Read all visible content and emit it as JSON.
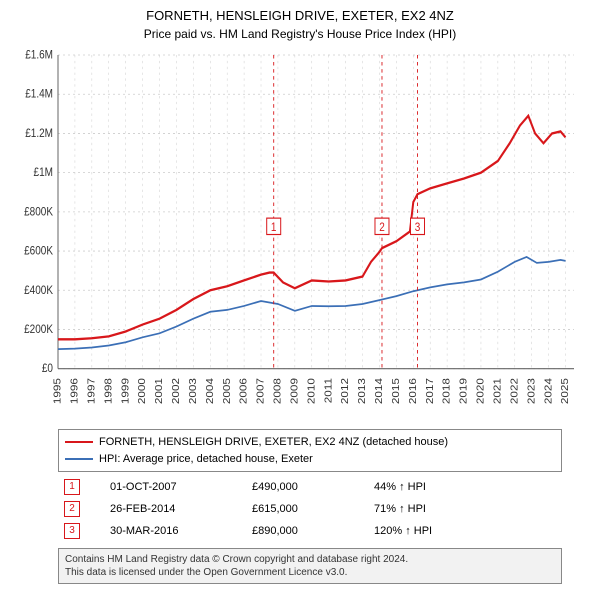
{
  "title": "FORNETH, HENSLEIGH DRIVE, EXETER, EX2 4NZ",
  "subtitle": "Price paid vs. HM Land Registry's House Price Index (HPI)",
  "chart": {
    "background_color": "#ffffff",
    "grid_color": "#cccccc",
    "axis_color": "#666666",
    "text_color": "#333333",
    "tick_fontsize": 10,
    "label_fontsize": 11,
    "x_years": [
      1995,
      1996,
      1997,
      1998,
      1999,
      2000,
      2001,
      2002,
      2003,
      2004,
      2005,
      2006,
      2007,
      2008,
      2009,
      2010,
      2011,
      2012,
      2013,
      2014,
      2015,
      2016,
      2017,
      2018,
      2019,
      2020,
      2021,
      2022,
      2023,
      2024,
      2025
    ],
    "xlim": [
      1995,
      2025.5
    ],
    "ylim": [
      0,
      1600000
    ],
    "ytick_step": 200000,
    "yticks": [
      "£0",
      "£200K",
      "£400K",
      "£600K",
      "£800K",
      "£1M",
      "£1.2M",
      "£1.4M",
      "£1.6M"
    ],
    "series": [
      {
        "name": "FORNETH, HENSLEIGH DRIVE, EXETER, EX2 4NZ (detached house)",
        "color": "#d8171b",
        "width": 2,
        "points": [
          [
            1995.0,
            150000
          ],
          [
            1996.0,
            150000
          ],
          [
            1997.0,
            155000
          ],
          [
            1998.0,
            165000
          ],
          [
            1999.0,
            190000
          ],
          [
            2000.0,
            225000
          ],
          [
            2001.0,
            255000
          ],
          [
            2002.0,
            300000
          ],
          [
            2003.0,
            355000
          ],
          [
            2004.0,
            400000
          ],
          [
            2005.0,
            420000
          ],
          [
            2006.0,
            450000
          ],
          [
            2007.0,
            480000
          ],
          [
            2007.5,
            490000
          ],
          [
            2007.75,
            490000
          ],
          [
            2008.3,
            440000
          ],
          [
            2009.0,
            410000
          ],
          [
            2010.0,
            450000
          ],
          [
            2011.0,
            445000
          ],
          [
            2012.0,
            450000
          ],
          [
            2013.0,
            470000
          ],
          [
            2013.5,
            545000
          ],
          [
            2014.0,
            595000
          ],
          [
            2014.15,
            615000
          ],
          [
            2015.0,
            650000
          ],
          [
            2015.8,
            700000
          ],
          [
            2016.0,
            850000
          ],
          [
            2016.25,
            890000
          ],
          [
            2017.0,
            920000
          ],
          [
            2018.0,
            945000
          ],
          [
            2019.0,
            970000
          ],
          [
            2020.0,
            1000000
          ],
          [
            2021.0,
            1060000
          ],
          [
            2021.7,
            1150000
          ],
          [
            2022.3,
            1240000
          ],
          [
            2022.8,
            1290000
          ],
          [
            2023.2,
            1200000
          ],
          [
            2023.7,
            1150000
          ],
          [
            2024.2,
            1200000
          ],
          [
            2024.7,
            1210000
          ],
          [
            2025.0,
            1180000
          ]
        ]
      },
      {
        "name": "HPI: Average price, detached house, Exeter",
        "color": "#3b6fb6",
        "width": 1.5,
        "points": [
          [
            1995.0,
            100000
          ],
          [
            1996.0,
            102000
          ],
          [
            1997.0,
            108000
          ],
          [
            1998.0,
            118000
          ],
          [
            1999.0,
            135000
          ],
          [
            2000.0,
            160000
          ],
          [
            2001.0,
            180000
          ],
          [
            2002.0,
            215000
          ],
          [
            2003.0,
            255000
          ],
          [
            2004.0,
            290000
          ],
          [
            2005.0,
            300000
          ],
          [
            2006.0,
            320000
          ],
          [
            2007.0,
            345000
          ],
          [
            2008.0,
            330000
          ],
          [
            2009.0,
            295000
          ],
          [
            2010.0,
            320000
          ],
          [
            2011.0,
            318000
          ],
          [
            2012.0,
            320000
          ],
          [
            2013.0,
            330000
          ],
          [
            2014.0,
            350000
          ],
          [
            2015.0,
            370000
          ],
          [
            2016.0,
            395000
          ],
          [
            2017.0,
            415000
          ],
          [
            2018.0,
            430000
          ],
          [
            2019.0,
            440000
          ],
          [
            2020.0,
            455000
          ],
          [
            2021.0,
            495000
          ],
          [
            2022.0,
            545000
          ],
          [
            2022.7,
            570000
          ],
          [
            2023.3,
            540000
          ],
          [
            2024.0,
            545000
          ],
          [
            2024.7,
            555000
          ],
          [
            2025.0,
            550000
          ]
        ]
      }
    ],
    "events": [
      {
        "idx": "1",
        "x": 2007.75,
        "date": "01-OCT-2007",
        "price": "£490,000",
        "delta": "44% ↑ HPI"
      },
      {
        "idx": "2",
        "x": 2014.15,
        "date": "26-FEB-2014",
        "price": "£615,000",
        "delta": "71% ↑ HPI"
      },
      {
        "idx": "3",
        "x": 2016.25,
        "date": "30-MAR-2016",
        "price": "£890,000",
        "delta": "120% ↑ HPI"
      }
    ],
    "event_line_color": "#d8171b",
    "event_box_border": "#d8171b",
    "event_box_text": "#d8171b"
  },
  "legend": {
    "border_color": "#888888",
    "items": [
      {
        "color": "#d8171b",
        "label": "FORNETH, HENSLEIGH DRIVE, EXETER, EX2 4NZ (detached house)"
      },
      {
        "color": "#3b6fb6",
        "label": "HPI: Average price, detached house, Exeter"
      }
    ]
  },
  "footer": {
    "line1": "Contains HM Land Registry data © Crown copyright and database right 2024.",
    "line2": "This data is licensed under the Open Government Licence v3.0.",
    "background": "#f2f2f2",
    "border": "#888888"
  }
}
